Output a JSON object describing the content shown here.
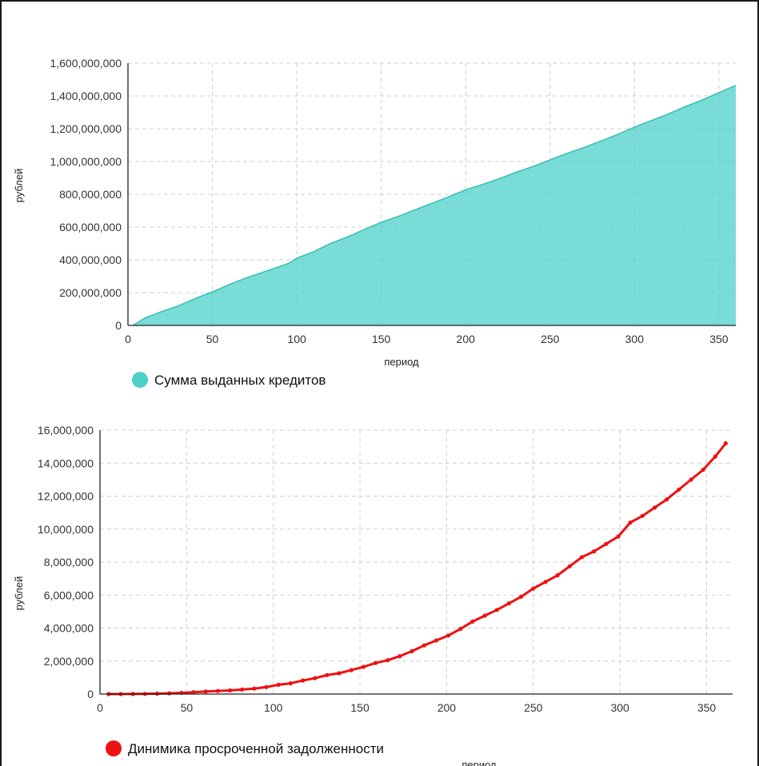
{
  "colors": {
    "area": "#4dd0c8",
    "area_line": "#37bdb4",
    "line": "#ee1111"
  },
  "chart_data": [
    {
      "type": "area",
      "title": "",
      "xlabel": "период",
      "ylabel": "рублей",
      "xlim": [
        0,
        360
      ],
      "ylim": [
        0,
        1600000000
      ],
      "xticks": [
        0,
        50,
        100,
        150,
        200,
        250,
        300,
        350
      ],
      "yticks": [
        0,
        200000000,
        400000000,
        600000000,
        800000000,
        1000000000,
        1200000000,
        1400000000,
        1600000000
      ],
      "xtick_labels": [
        "0",
        "50",
        "100",
        "150",
        "200",
        "250",
        "300",
        "350"
      ],
      "ytick_labels": [
        "0",
        "200,000,000",
        "400,000,000",
        "600,000,000",
        "800,000,000",
        "1,000,000,000",
        "1,200,000,000",
        "1,400,000,000",
        "1,600,000,000"
      ],
      "grid": true,
      "legend_position": "bottom-left",
      "series": [
        {
          "name": "Сумма выданных кредитов",
          "x": [
            3,
            10,
            20,
            30,
            40,
            50,
            60,
            70,
            80,
            90,
            95,
            100,
            110,
            120,
            130,
            140,
            150,
            160,
            170,
            180,
            190,
            200,
            210,
            220,
            230,
            240,
            250,
            260,
            270,
            280,
            290,
            300,
            310,
            320,
            330,
            340,
            350,
            360
          ],
          "y": [
            0,
            45000000,
            85000000,
            120000000,
            165000000,
            205000000,
            250000000,
            290000000,
            325000000,
            360000000,
            378000000,
            410000000,
            450000000,
            500000000,
            540000000,
            585000000,
            630000000,
            665000000,
            705000000,
            745000000,
            785000000,
            828000000,
            860000000,
            895000000,
            935000000,
            970000000,
            1010000000,
            1050000000,
            1085000000,
            1125000000,
            1165000000,
            1210000000,
            1250000000,
            1290000000,
            1335000000,
            1375000000,
            1420000000,
            1465000000
          ]
        }
      ]
    },
    {
      "type": "line",
      "title": "",
      "xlabel": "период",
      "ylabel": "рублей",
      "xlim": [
        0,
        365
      ],
      "ylim": [
        0,
        16000000
      ],
      "xticks": [
        0,
        50,
        100,
        150,
        200,
        250,
        300,
        350
      ],
      "yticks": [
        0,
        2000000,
        4000000,
        6000000,
        8000000,
        10000000,
        12000000,
        14000000,
        16000000
      ],
      "xtick_labels": [
        "0",
        "50",
        "100",
        "150",
        "200",
        "250",
        "300",
        "350"
      ],
      "ytick_labels": [
        "0",
        "2,000,000",
        "4,000,000",
        "6,000,000",
        "8,000,000",
        "10,000,000",
        "12,000,000",
        "14,000,000",
        "16,000,000"
      ],
      "grid": true,
      "legend_position": "bottom-left",
      "series": [
        {
          "name": "Динимика просроченной задолженности",
          "x": [
            5,
            12,
            19,
            26,
            33,
            40,
            47,
            54,
            61,
            68,
            75,
            82,
            89,
            96,
            103,
            110,
            117,
            124,
            131,
            138,
            145,
            152,
            159,
            166,
            173,
            180,
            187,
            194,
            201,
            208,
            215,
            222,
            229,
            236,
            243,
            250,
            257,
            264,
            271,
            278,
            285,
            292,
            299,
            306,
            313,
            320,
            327,
            334,
            341,
            348,
            355,
            361
          ],
          "y": [
            0,
            0,
            5000,
            10000,
            25000,
            45000,
            75000,
            110000,
            150000,
            190000,
            220000,
            270000,
            330000,
            420000,
            560000,
            650000,
            820000,
            960000,
            1150000,
            1260000,
            1450000,
            1650000,
            1880000,
            2050000,
            2300000,
            2600000,
            2950000,
            3250000,
            3550000,
            3950000,
            4400000,
            4750000,
            5100000,
            5500000,
            5900000,
            6400000,
            6800000,
            7200000,
            7750000,
            8300000,
            8650000,
            9100000,
            9550000,
            10400000,
            10800000,
            11300000,
            11800000,
            12400000,
            13000000,
            13600000,
            14400000,
            15200000
          ]
        }
      ]
    }
  ]
}
